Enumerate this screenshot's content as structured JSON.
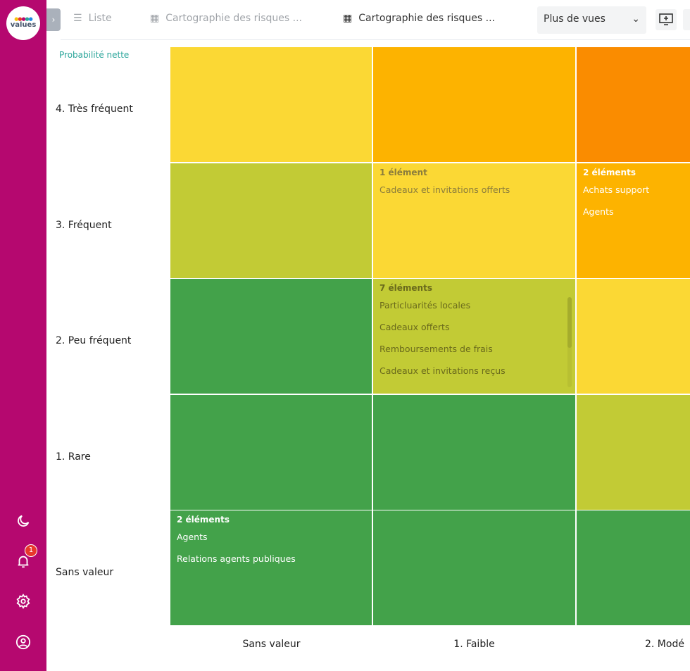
{
  "app": {
    "logo_text": "values"
  },
  "sidebar": {
    "icons": [
      "moon-icon",
      "bell-icon",
      "gear-icon",
      "user-circle-icon"
    ],
    "notification_count": "1",
    "color": "#b5086f"
  },
  "tabs": [
    {
      "label": "Liste",
      "icon": "list-icon"
    },
    {
      "label": "Cartographie des risques ...",
      "icon": "grid-icon"
    },
    {
      "label": "Cartographie des risques ...",
      "icon": "grid-icon",
      "active": true
    }
  ],
  "more_views": {
    "label": "Plus de vues"
  },
  "matrix": {
    "y_title": "Probabilité nette",
    "rows": [
      "4. Très fréquent",
      "3. Fréquent",
      "2. Peu fréquent",
      "1. Rare",
      "Sans valeur"
    ],
    "cols": [
      "Sans valeur",
      "1. Faible",
      "2. Modé"
    ],
    "colors": {
      "yellow": "#fbd834",
      "amber": "#fdb300",
      "orange": "#fa8c00",
      "olive": "#c2cb35",
      "green": "#43a24a"
    },
    "cells": [
      [
        {
          "color": "yellow"
        },
        {
          "color": "amber"
        },
        {
          "color": "orange"
        }
      ],
      [
        {
          "color": "olive"
        },
        {
          "color": "yellow",
          "count": "1 élément",
          "items": [
            "Cadeaux et invitations offerts"
          ]
        },
        {
          "color": "amber",
          "count": "2 éléments",
          "items": [
            "Achats support",
            "Agents"
          ]
        }
      ],
      [
        {
          "color": "green"
        },
        {
          "color": "olive",
          "count": "7 éléments",
          "items": [
            "Particluarités locales",
            "Cadeaux offerts",
            "Remboursements de frais",
            "Cadeaux et invitations reçus"
          ],
          "scroll": true
        },
        {
          "color": "yellow"
        }
      ],
      [
        {
          "color": "green"
        },
        {
          "color": "green"
        },
        {
          "color": "olive"
        }
      ],
      [
        {
          "color": "green",
          "count": "2 éléments",
          "items": [
            "Agents",
            "Relations agents publiques"
          ]
        },
        {
          "color": "green"
        },
        {
          "color": "green"
        }
      ]
    ]
  }
}
